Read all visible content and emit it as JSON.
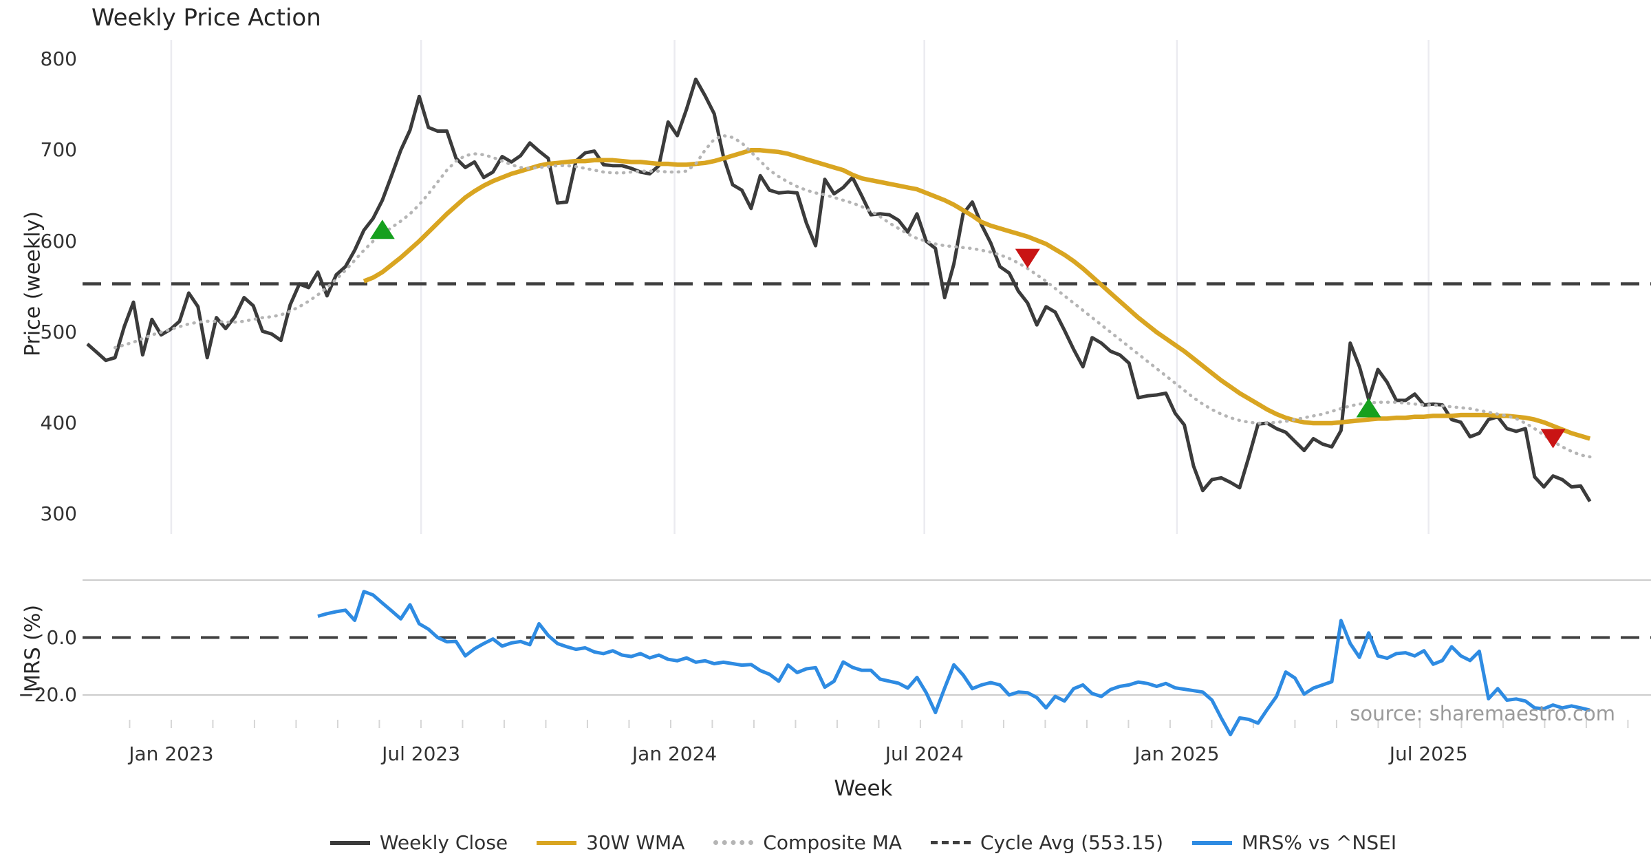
{
  "title": "Weekly Price Action",
  "source_note": "source: sharemaestro.com",
  "axes": {
    "price": {
      "label": "Price (weekly)",
      "ticks": [
        {
          "label": "800",
          "value": 800
        },
        {
          "label": "700",
          "value": 700
        },
        {
          "label": "600",
          "value": 600
        },
        {
          "label": "500",
          "value": 500
        },
        {
          "label": "400",
          "value": 400
        },
        {
          "label": "300",
          "value": 300
        }
      ]
    },
    "mrs": {
      "label": "MRS (%)",
      "ticks": [
        {
          "label": "0.0",
          "value": 0
        },
        {
          "label": "−20.0",
          "value": -20
        }
      ]
    },
    "x": {
      "label": "Week",
      "ticks": [
        {
          "label": "Jan 2023",
          "week": 9.1
        },
        {
          "label": "Jul 2023",
          "week": 36.2
        },
        {
          "label": "Jan 2024",
          "week": 63.7
        },
        {
          "label": "Jul 2024",
          "week": 90.8
        },
        {
          "label": "Jan 2025",
          "week": 118.2
        },
        {
          "label": "Jul 2025",
          "week": 145.5
        }
      ]
    }
  },
  "legend": [
    {
      "label": "Weekly Close",
      "style": "solid",
      "color": "#3b3b3b"
    },
    {
      "label": "30W WMA",
      "style": "solid",
      "color": "#d9a521"
    },
    {
      "label": "Composite MA",
      "style": "dotted",
      "color": "#b5b5b5"
    },
    {
      "label": "Cycle Avg (553.15)",
      "style": "dashed",
      "color": "#3f3f3f"
    },
    {
      "label": "MRS% vs ^NSEI",
      "style": "solid",
      "color": "#2e8be2"
    }
  ],
  "colors": {
    "weekly_close": "#3b3b3b",
    "wma_30w": "#d9a521",
    "composite_ma": "#b5b5b5",
    "cycle_avg": "#3f3f3f",
    "mrs": "#2e8be2",
    "buy_marker": "#16a01e",
    "sell_marker": "#c91414",
    "gridline": "#ebebf0",
    "mrs_gridline": "#cccccc",
    "minor_tick": "#d6d6d6"
  },
  "chart_data": {
    "type": "line",
    "title": "Weekly Price Action",
    "x_unit": "week index (week 0 ≈ Nov 2022, weekly spacing)",
    "price_panel": {
      "ylabel": "Price (weekly)",
      "ylim": [
        260,
        825
      ],
      "yticks": [
        300,
        400,
        500,
        600,
        700,
        800
      ]
    },
    "mrs_panel": {
      "ylabel": "MRS (%)",
      "yticks": [
        0,
        -20
      ],
      "zero_line_dashed": true,
      "gridlines_at": [
        20,
        -20
      ]
    },
    "cycle_avg": 553.15,
    "series": [
      {
        "name": "Weekly Close",
        "panel": "price",
        "color": "#3b3b3b",
        "dash": "solid",
        "start_week": 0,
        "values": [
          487,
          478,
          469,
          472,
          506,
          533,
          475,
          514,
          497,
          503,
          512,
          543,
          528,
          472,
          516,
          504,
          517,
          538,
          529,
          501,
          498,
          491,
          530,
          553,
          549,
          566,
          540,
          563,
          572,
          590,
          612,
          625,
          645,
          672,
          700,
          722,
          759,
          725,
          721,
          721,
          691,
          681,
          687,
          670,
          676,
          693,
          687,
          694,
          708,
          699,
          691,
          642,
          643,
          688,
          697,
          699,
          684,
          683,
          683,
          680,
          676,
          674,
          683,
          731,
          716,
          745,
          778,
          760,
          740,
          693,
          662,
          656,
          636,
          672,
          656,
          653,
          654,
          653,
          620,
          595,
          668,
          652,
          659,
          670,
          650,
          629,
          630,
          629,
          623,
          610,
          630,
          600,
          592,
          538,
          575,
          630,
          643,
          618,
          598,
          572,
          565,
          545,
          532,
          508,
          528,
          522,
          502,
          481,
          462,
          494,
          488,
          479,
          475,
          466,
          428,
          430,
          431,
          433,
          411,
          398,
          353,
          326,
          338,
          340,
          335,
          329,
          363,
          399,
          400,
          394,
          390,
          380,
          370,
          383,
          377,
          374,
          392,
          488,
          462,
          426,
          459,
          445,
          425,
          425,
          432,
          420,
          421,
          420,
          404,
          401,
          385,
          389,
          404,
          407,
          394,
          391,
          394,
          341,
          330,
          342,
          338,
          330,
          331,
          314
        ]
      },
      {
        "name": "30W WMA",
        "panel": "price",
        "color": "#d9a521",
        "dash": "solid",
        "start_week": 30,
        "values": [
          556,
          560,
          566,
          574,
          582,
          591,
          600,
          610,
          620,
          630,
          639,
          648,
          655,
          661,
          666,
          670,
          674,
          677,
          680,
          683,
          685,
          686,
          687,
          688,
          688,
          689,
          689,
          689,
          688,
          687,
          687,
          686,
          685,
          685,
          684,
          684,
          685,
          686,
          688,
          691,
          694,
          697,
          700,
          700,
          699,
          698,
          696,
          693,
          690,
          687,
          684,
          681,
          678,
          673,
          669,
          667,
          665,
          663,
          661,
          659,
          657,
          653,
          649,
          645,
          640,
          634,
          628,
          621,
          617,
          614,
          611,
          608,
          605,
          601,
          597,
          591,
          585,
          578,
          570,
          561,
          552,
          543,
          534,
          525,
          516,
          508,
          500,
          493,
          486,
          479,
          471,
          463,
          455,
          447,
          440,
          433,
          427,
          421,
          415,
          410,
          406,
          403,
          401,
          400,
          400,
          400,
          401,
          402,
          403,
          404,
          405,
          405,
          406,
          406,
          407,
          407,
          408,
          408,
          408,
          409,
          409,
          409,
          409,
          408,
          408,
          407,
          406,
          404,
          401,
          397,
          393,
          389,
          386,
          383
        ]
      },
      {
        "name": "Composite MA",
        "panel": "price",
        "color": "#b5b5b5",
        "dash": "dotted",
        "start_week": 3,
        "values": [
          483,
          486,
          489,
          493,
          497,
          500,
          503,
          506,
          509,
          511,
          512,
          512,
          511,
          511,
          512,
          514,
          516,
          517,
          519,
          523,
          528,
          534,
          541,
          549,
          558,
          568,
          579,
          590,
          600,
          608,
          615,
          622,
          630,
          640,
          652,
          665,
          678,
          688,
          694,
          696,
          695,
          692,
          688,
          684,
          681,
          680,
          681,
          682,
          683,
          683,
          682,
          680,
          678,
          676,
          675,
          675,
          676,
          677,
          677,
          677,
          676,
          676,
          677,
          685,
          700,
          712,
          716,
          714,
          708,
          698,
          688,
          678,
          671,
          665,
          660,
          656,
          653,
          651,
          648,
          645,
          642,
          638,
          633,
          627,
          620,
          614,
          608,
          603,
          600,
          597,
          595,
          594,
          593,
          592,
          590,
          588,
          585,
          581,
          576,
          570,
          563,
          556,
          548,
          540,
          532,
          524,
          516,
          508,
          500,
          492,
          484,
          476,
          468,
          460,
          452,
          444,
          436,
          428,
          421,
          415,
          410,
          406,
          403,
          401,
          400,
          400,
          401,
          402,
          404,
          406,
          408,
          410,
          413,
          416,
          419,
          421,
          422,
          423,
          423,
          423,
          422,
          421,
          420,
          420,
          419,
          418,
          417,
          416,
          414,
          412,
          410,
          408,
          405,
          400,
          394,
          387,
          380,
          374,
          369,
          365,
          363
        ]
      },
      {
        "name": "MRS% vs ^NSEI",
        "panel": "mrs",
        "color": "#2e8be2",
        "dash": "solid",
        "start_week": 25,
        "values": [
          7.4,
          8.3,
          9.0,
          9.5,
          6.0,
          16.0,
          14.8,
          12.0,
          9.3,
          6.5,
          11.4,
          4.8,
          2.9,
          0.0,
          -1.5,
          -1.4,
          -6.4,
          -3.9,
          -2.1,
          -0.5,
          -3.0,
          -1.9,
          -1.4,
          -2.5,
          4.8,
          0.7,
          -2.1,
          -3.2,
          -4.1,
          -3.6,
          -5.0,
          -5.6,
          -4.6,
          -6.1,
          -6.6,
          -5.6,
          -7.1,
          -6.1,
          -7.6,
          -8.1,
          -7.1,
          -8.6,
          -8.1,
          -9.1,
          -8.6,
          -9.1,
          -9.6,
          -9.4,
          -11.5,
          -12.8,
          -15.2,
          -9.6,
          -12.2,
          -10.9,
          -10.5,
          -17.3,
          -15.2,
          -8.5,
          -10.4,
          -11.4,
          -11.4,
          -14.5,
          -15.2,
          -15.9,
          -17.6,
          -13.9,
          -19.2,
          -26.1,
          -17.6,
          -9.5,
          -13.0,
          -17.8,
          -16.5,
          -15.7,
          -16.5,
          -20.0,
          -19.0,
          -19.2,
          -20.9,
          -24.5,
          -20.5,
          -22.1,
          -17.8,
          -16.5,
          -19.5,
          -20.5,
          -18.1,
          -17.0,
          -16.5,
          -15.5,
          -16.0,
          -17.0,
          -16.0,
          -17.5,
          -18.0,
          -18.5,
          -19.0,
          -21.8,
          -28.0,
          -33.8,
          -28.0,
          -28.5,
          -29.8,
          -25.0,
          -20.5,
          -12.0,
          -14.1,
          -19.7,
          -17.6,
          -16.5,
          -15.4,
          5.9,
          -2.1,
          -6.9,
          1.6,
          -6.4,
          -7.2,
          -5.6,
          -5.3,
          -6.4,
          -4.6,
          -9.3,
          -8.0,
          -3.2,
          -6.4,
          -8.0,
          -4.8,
          -21.3,
          -17.8,
          -21.8,
          -21.4,
          -22.1,
          -24.5,
          -24.8,
          -23.5,
          -24.5,
          -23.8,
          -24.5,
          -25.3
        ]
      }
    ],
    "markers": [
      {
        "week": 32,
        "price": 613,
        "type": "buy"
      },
      {
        "week": 102,
        "price": 581,
        "type": "sell"
      },
      {
        "week": 139,
        "price": 417,
        "type": "buy"
      },
      {
        "week": 159,
        "price": 383,
        "type": "sell"
      }
    ]
  }
}
